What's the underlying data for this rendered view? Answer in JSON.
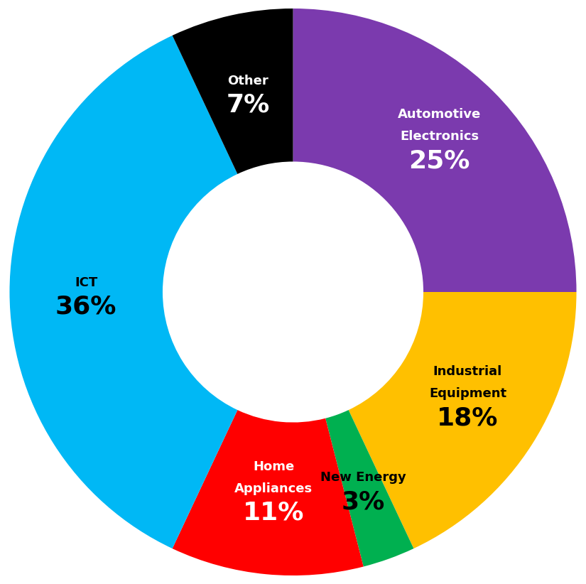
{
  "chart_data": {
    "type": "pie",
    "categories": [
      "Automotive Electronics",
      "Industrial Equipment",
      "New Energy",
      "Home Appliances",
      "ICT",
      "Other"
    ],
    "values": [
      25,
      18,
      3,
      11,
      36,
      7
    ],
    "value_labels": [
      "25%",
      "18%",
      "3%",
      "11%",
      "36%",
      "7%"
    ],
    "colors": [
      "#7b3aae",
      "#ffc000",
      "#00b050",
      "#ff0000",
      "#00b8f5",
      "#000000"
    ],
    "data_labels": true
  }
}
